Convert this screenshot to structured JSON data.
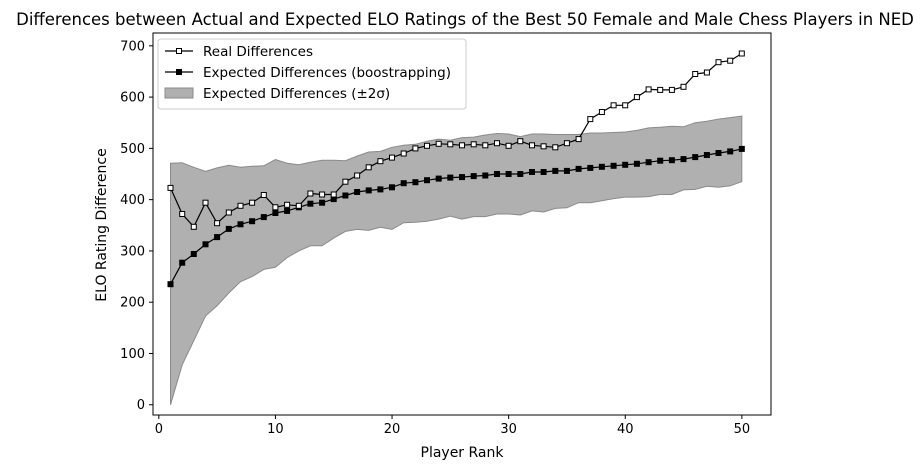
{
  "chart_data": {
    "type": "line",
    "title": "Differences between Actual and Expected ELO Ratings of the Best 50 Female and Male Chess Players in NED",
    "xlabel": "Player Rank",
    "ylabel": "ELO Rating Difference",
    "xlim": [
      -0.5,
      52.5
    ],
    "ylim": [
      -20,
      725
    ],
    "x_ticks": [
      0,
      10,
      20,
      30,
      40,
      50
    ],
    "y_ticks": [
      0,
      100,
      200,
      300,
      400,
      500,
      600,
      700
    ],
    "grid": false,
    "legend_position": "upper-left",
    "x": [
      1,
      2,
      3,
      4,
      5,
      6,
      7,
      8,
      9,
      10,
      11,
      12,
      13,
      14,
      15,
      16,
      17,
      18,
      19,
      20,
      21,
      22,
      23,
      24,
      25,
      26,
      27,
      28,
      29,
      30,
      31,
      32,
      33,
      34,
      35,
      36,
      37,
      38,
      39,
      40,
      41,
      42,
      43,
      44,
      45,
      46,
      47,
      48,
      49,
      50
    ],
    "series": [
      {
        "name": "Real Differences",
        "marker": "open-square",
        "color": "#000000",
        "values": [
          423,
          372,
          347,
          394,
          354,
          375,
          388,
          394,
          409,
          385,
          390,
          388,
          412,
          410,
          410,
          435,
          447,
          463,
          475,
          482,
          490,
          500,
          505,
          509,
          508,
          506,
          508,
          506,
          510,
          505,
          514,
          506,
          504,
          502,
          510,
          518,
          557,
          571,
          584,
          584,
          600,
          615,
          614,
          614,
          620,
          645,
          648,
          668,
          671,
          685
        ]
      },
      {
        "name": "Expected Differences (boostrapping)",
        "marker": "filled-square",
        "color": "#000000",
        "values": [
          235,
          277,
          294,
          313,
          327,
          343,
          352,
          358,
          366,
          374,
          378,
          385,
          392,
          394,
          401,
          408,
          415,
          418,
          420,
          424,
          432,
          434,
          438,
          441,
          443,
          444,
          446,
          447,
          450,
          450,
          450,
          454,
          454,
          456,
          456,
          460,
          462,
          464,
          466,
          468,
          470,
          473,
          476,
          477,
          479,
          483,
          487,
          491,
          494,
          499
        ]
      },
      {
        "name": "Expected Differences (±2σ)",
        "type": "band",
        "fill": "#b0b0b0",
        "edge": "#8a8a8a",
        "lower": [
          0,
          78,
          125,
          173,
          193,
          218,
          240,
          250,
          264,
          268,
          287,
          300,
          310,
          310,
          325,
          338,
          342,
          340,
          346,
          342,
          355,
          356,
          358,
          362,
          368,
          362,
          367,
          367,
          372,
          372,
          370,
          378,
          376,
          383,
          384,
          394,
          394,
          398,
          402,
          405,
          405,
          406,
          410,
          410,
          419,
          420,
          426,
          424,
          427,
          435
        ],
        "upper": [
          471,
          472,
          463,
          455,
          462,
          467,
          463,
          465,
          466,
          478,
          471,
          468,
          473,
          477,
          477,
          476,
          485,
          493,
          494,
          502,
          506,
          508,
          514,
          518,
          516,
          521,
          522,
          526,
          529,
          528,
          523,
          528,
          528,
          527,
          527,
          527,
          530,
          530,
          531,
          532,
          535,
          540,
          541,
          543,
          542,
          550,
          553,
          557,
          560,
          563
        ]
      }
    ]
  }
}
